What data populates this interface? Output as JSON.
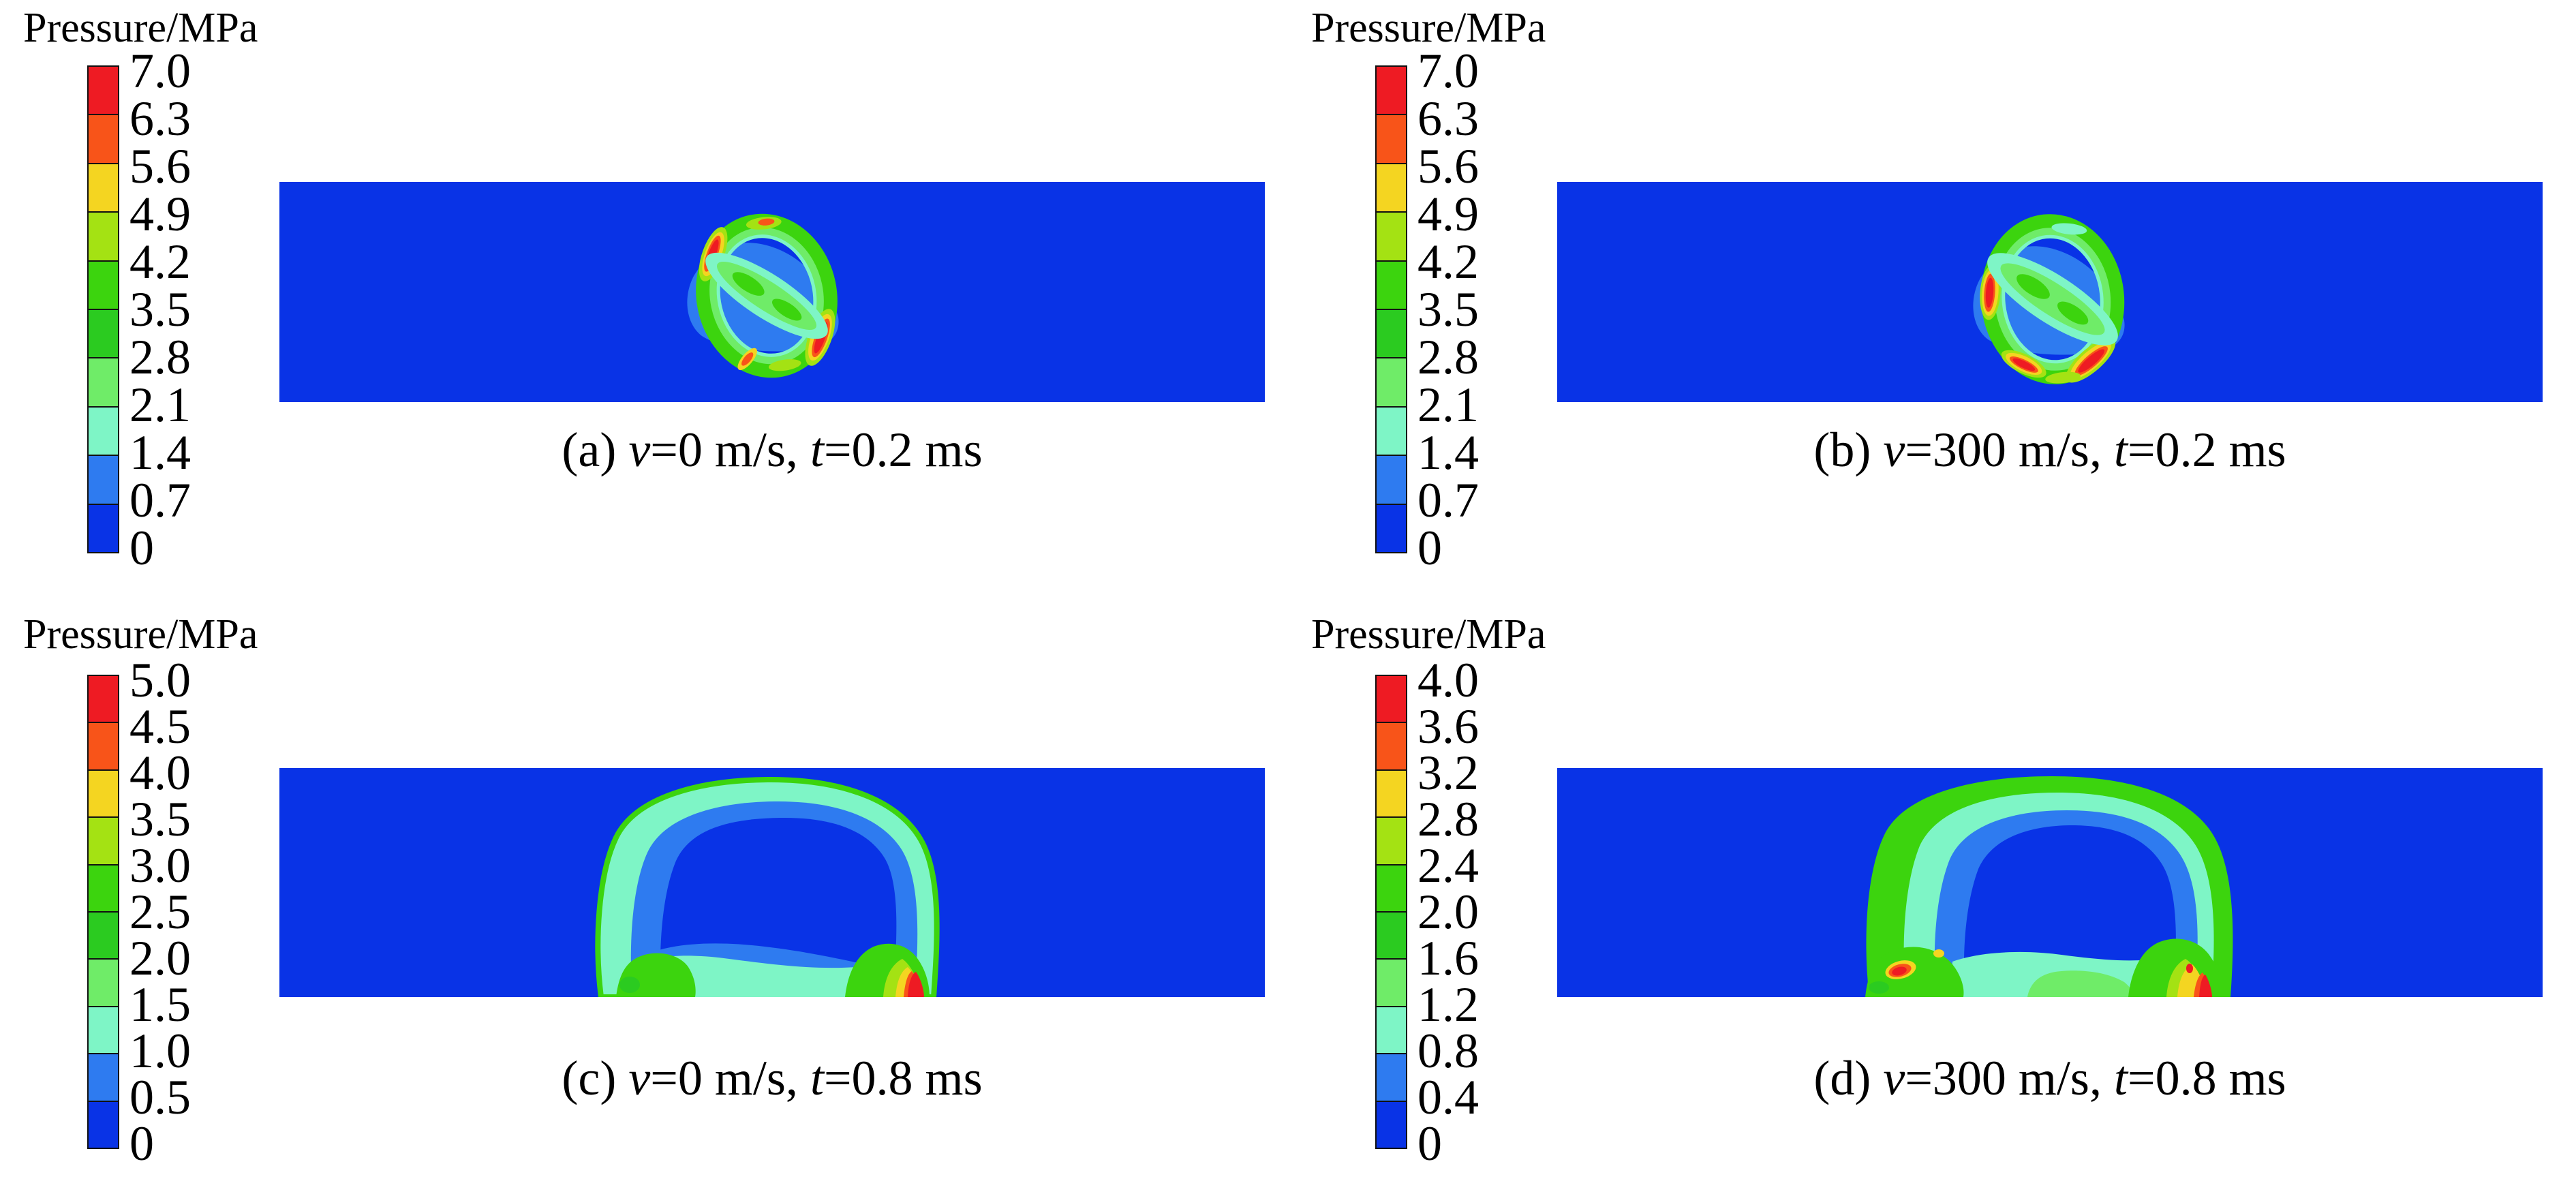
{
  "figure": {
    "kind": "CFD pressure contour comparison, four panels",
    "variable": "Pressure",
    "units": "MPa",
    "background": "#ffffff"
  },
  "palette": {
    "red": "#ee1b23",
    "orange": "#f85419",
    "yellow": "#f4d521",
    "ygreen": "#a4e213",
    "green": "#3cd40e",
    "green2": "#2bcb20",
    "lgreen": "#6fec68",
    "aqua": "#7ef5c6",
    "dodger": "#2e7bf0",
    "royal": "#0933e6",
    "ink": "#000000"
  },
  "colorbar_order": [
    "red",
    "orange",
    "yellow",
    "ygreen",
    "green",
    "green2",
    "lgreen",
    "aqua",
    "dodger",
    "royal"
  ],
  "legends": [
    {
      "title": "Pressure/MPa",
      "ticks": [
        "7.0",
        "6.3",
        "5.6",
        "4.9",
        "4.2",
        "3.5",
        "2.8",
        "2.1",
        "1.4",
        "0.7",
        "0"
      ]
    },
    {
      "title": "Pressure/MPa",
      "ticks": [
        "7.0",
        "6.3",
        "5.6",
        "4.9",
        "4.2",
        "3.5",
        "2.8",
        "2.1",
        "1.4",
        "0.7",
        "0"
      ]
    },
    {
      "title": "Pressure/MPa",
      "ticks": [
        "5.0",
        "4.5",
        "4.0",
        "3.5",
        "3.0",
        "2.5",
        "2.0",
        "1.5",
        "1.0",
        "0.5",
        "0"
      ]
    },
    {
      "title": "Pressure/MPa",
      "ticks": [
        "4.0",
        "3.6",
        "3.2",
        "2.8",
        "2.4",
        "2.0",
        "1.6",
        "1.2",
        "0.8",
        "0.4",
        "0"
      ]
    }
  ],
  "captions": [
    {
      "parts": [
        "(a) ",
        "v",
        "=0 m/s, ",
        "t",
        "=0.2 ms"
      ]
    },
    {
      "parts": [
        "(b) ",
        "v",
        "=300 m/s, ",
        "t",
        "=0.2 ms"
      ]
    },
    {
      "parts": [
        "(c) ",
        "v",
        "=0 m/s, ",
        "t",
        "=0.8 ms"
      ]
    },
    {
      "parts": [
        "(d) ",
        "v",
        "=300 m/s, ",
        "t",
        "=0.8 ms"
      ]
    }
  ],
  "chart_data": [
    {
      "type": "heatmap",
      "panel": "a",
      "caption": "(a) v=0 m/s, t=0.2 ms",
      "variable": "Pressure",
      "units": "MPa",
      "levels": [
        0,
        0.7,
        1.4,
        2.1,
        2.8,
        3.5,
        4.2,
        4.9,
        5.6,
        6.3,
        7.0
      ],
      "colorbar_range": [
        0,
        7.0
      ],
      "legend_position": "left",
      "grid": false,
      "features": "Early-time ring-shaped detonation shock front (green band, ~2.8-4.9 MPa) around a tilted elongated charge region (aquamarine/green capsule, ~1.4-3.5 MPa); red hot spots (~7 MPa) on upper-left and lower-right arcs of the ring; ambient field 0-0.7 MPa (blue)."
    },
    {
      "type": "heatmap",
      "panel": "b",
      "caption": "(b) v=300 m/s, t=0.2 ms",
      "variable": "Pressure",
      "units": "MPa",
      "levels": [
        0,
        0.7,
        1.4,
        2.1,
        2.8,
        3.5,
        4.2,
        4.9,
        5.6,
        6.3,
        7.0
      ],
      "colorbar_range": [
        0,
        7.0
      ],
      "legend_position": "left",
      "grid": false,
      "features": "Slightly larger shock ring than panel (a); red hot spots (~7 MPa) on the left, lower-left and lower-right arcs; same tilted capsule-shaped high-pressure core in the center; ambient 0-0.7 MPa."
    },
    {
      "type": "heatmap",
      "panel": "c",
      "caption": "(c) v=0 m/s, t=0.8 ms",
      "variable": "Pressure",
      "units": "MPa",
      "levels": [
        0,
        0.5,
        1.0,
        1.5,
        2.0,
        2.5,
        3.0,
        3.5,
        4.0,
        4.5,
        5.0
      ],
      "colorbar_range": [
        0,
        5.0
      ],
      "legend_position": "left",
      "grid": false,
      "features": "Late-time dome-shaped expanding wave reaching the bottom boundary; thin aquamarine (~1.0-1.5 MPa) shell with light-blue (~0.5-1.0 MPa) inner band; green feet (~2-3 MPa) at both legs and a localized red peak (~5 MPa) at the right foot on the bottom boundary."
    },
    {
      "type": "heatmap",
      "panel": "d",
      "caption": "(d) v=300 m/s, t=0.8 ms",
      "variable": "Pressure",
      "units": "MPa",
      "levels": [
        0,
        0.4,
        0.8,
        1.2,
        1.6,
        2.0,
        2.4,
        2.8,
        3.2,
        3.6,
        4.0
      ],
      "colorbar_range": [
        0,
        4.0
      ],
      "legend_position": "left",
      "grid": false,
      "features": "Dome-shaped wave with a thicker green shell (~2.0-2.8 MPa) than panel (c); wide aquamarine bottom layer (~0.8-1.2 MPa); small red spot (~4 MPa) at the left foot and a larger yellow/red peak region at the right foot on the bottom boundary."
    }
  ]
}
